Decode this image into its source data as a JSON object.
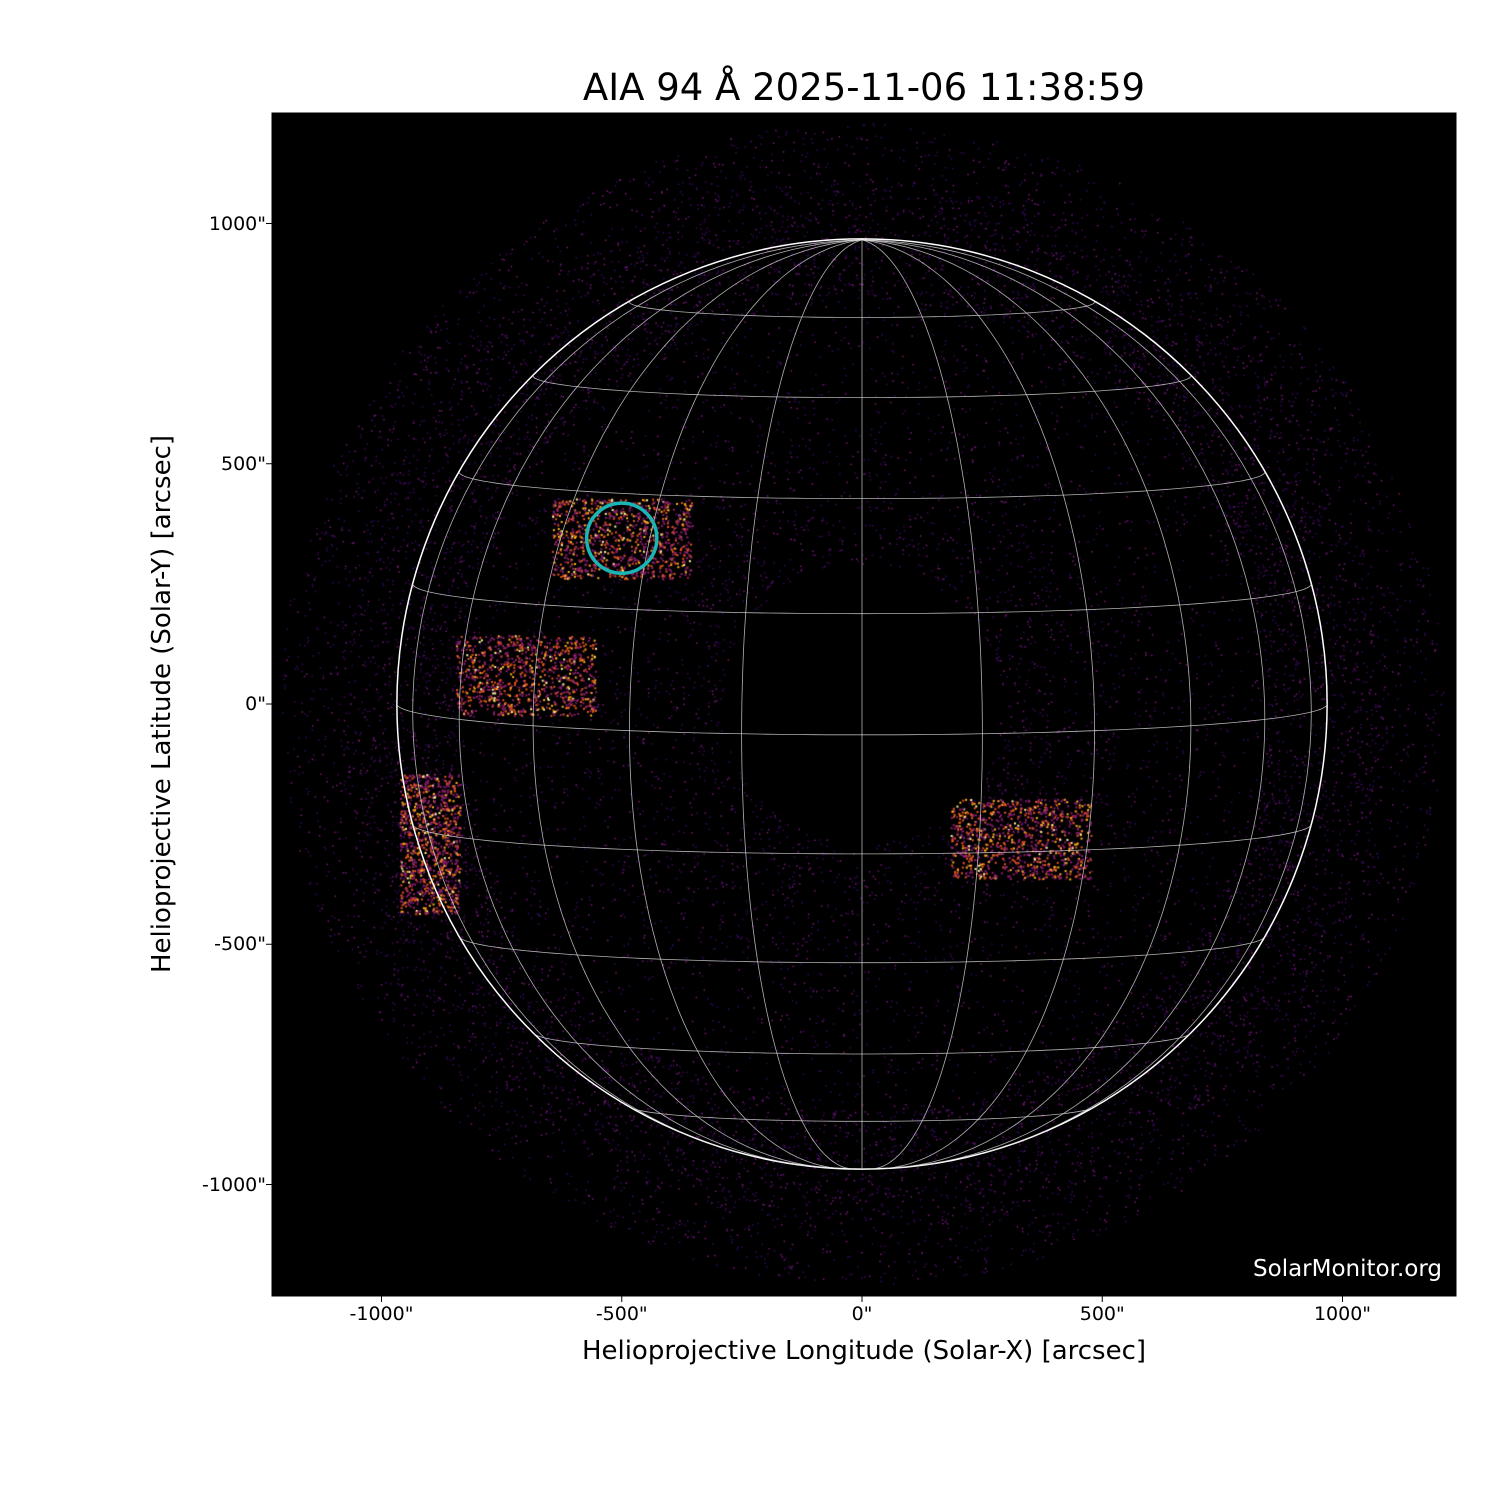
{
  "title": "AIA 94 Å 2025-11-06 11:38:59",
  "watermark": "SolarMonitor.org",
  "chart_data": {
    "type": "heatmap",
    "title": "AIA 94 Å 2025-11-06 11:38:59",
    "xlabel": "Helioprojective Longitude (Solar-X) [arcsec]",
    "ylabel": "Helioprojective Latitude (Solar-Y) [arcsec]",
    "xlim": [
      -1230,
      1230
    ],
    "ylim": [
      -1230,
      1230
    ],
    "x_ticks": [
      -1000,
      -500,
      0,
      500,
      1000
    ],
    "x_tick_labels": [
      "-1000\"",
      "-500\"",
      "0\"",
      "500\"",
      "1000\""
    ],
    "y_ticks": [
      1000,
      500,
      0,
      -500,
      -1000
    ],
    "y_tick_labels": [
      "1000\"",
      "500\"",
      "0\"",
      "-500\"",
      "-1000\""
    ],
    "solar_radius_arcsec": 968,
    "grid_spacing_deg": 15,
    "colormap": "inferno-like",
    "grid_color": "#ffffff",
    "marker": {
      "shape": "circle",
      "color": "#1ab5b5",
      "x": -500,
      "y": 345,
      "radius": 73
    },
    "bright_regions": [
      {
        "x": -500,
        "y": 345
      },
      {
        "x": -900,
        "y": -290
      },
      {
        "x": -700,
        "y": 60
      },
      {
        "x": 330,
        "y": -280
      }
    ]
  }
}
